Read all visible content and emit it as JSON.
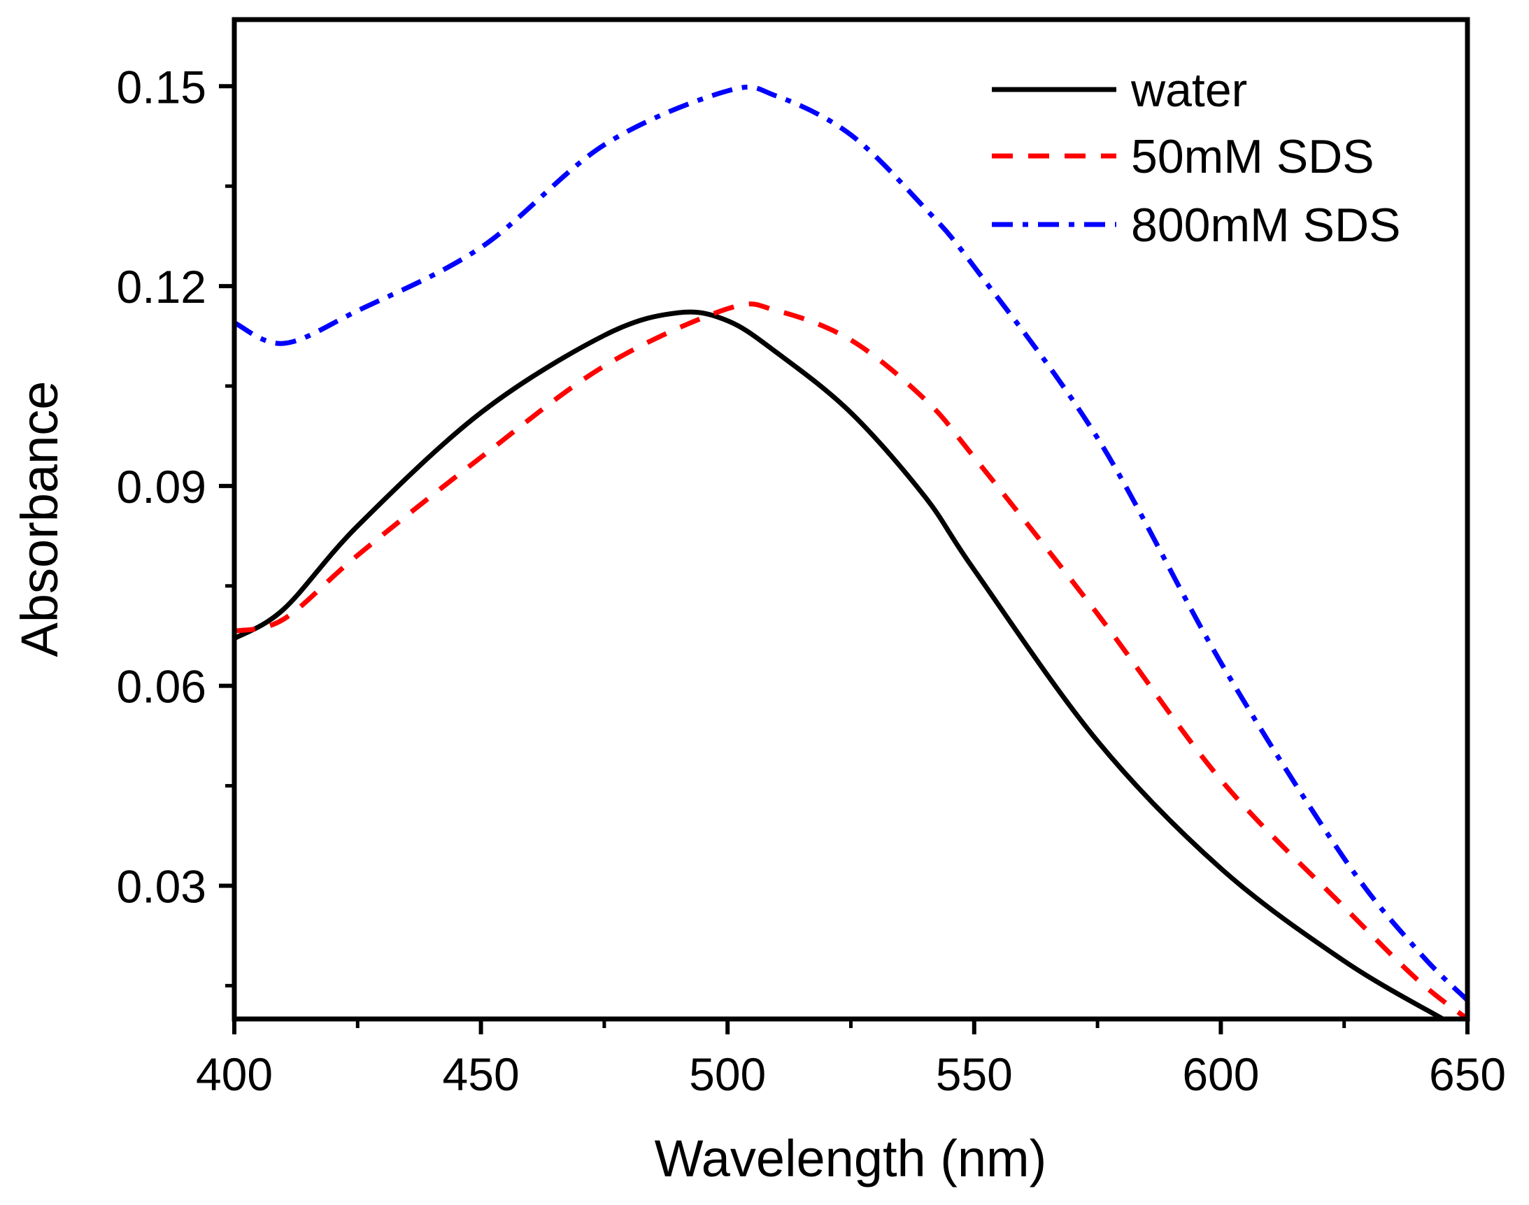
{
  "chart_data": {
    "type": "line",
    "title": "",
    "xlabel": "Wavelength (nm)",
    "ylabel": "Absorbance",
    "xlim": [
      400,
      650
    ],
    "ylim": [
      0.01,
      0.16
    ],
    "xticks": [
      400,
      450,
      500,
      550,
      600,
      650
    ],
    "xtick_labels": [
      "400",
      "450",
      "500",
      "550",
      "600",
      "650"
    ],
    "yticks": [
      0.03,
      0.06,
      0.09,
      0.12,
      0.15
    ],
    "ytick_labels": [
      "0.03",
      "0.06",
      "0.09",
      "0.12",
      "0.15"
    ],
    "grid": false,
    "legend_position": "top-right",
    "series": [
      {
        "name": "water",
        "color": "#000000",
        "style": "solid",
        "x": [
          400,
          410,
          425,
          450,
          475,
          490,
          500,
          510,
          525,
          540,
          550,
          575,
          600,
          625,
          645
        ],
        "y": [
          0.0671,
          0.0715,
          0.084,
          0.101,
          0.1126,
          0.116,
          0.1148,
          0.11,
          0.101,
          0.0884,
          0.0774,
          0.0517,
          0.0326,
          0.0187,
          0.01
        ]
      },
      {
        "name": "50mM SDS",
        "color": "#ff0000",
        "style": "dashed",
        "x": [
          400,
          410,
          425,
          450,
          475,
          500,
          510,
          525,
          540,
          550,
          575,
          600,
          625,
          640,
          650
        ],
        "y": [
          0.0682,
          0.07,
          0.0796,
          0.0943,
          0.108,
          0.1166,
          0.1163,
          0.1119,
          0.103,
          0.0943,
          0.0708,
          0.0459,
          0.0268,
          0.0158,
          0.01
        ]
      },
      {
        "name": "800mM SDS",
        "color": "#0000ff",
        "style": "dash-dot",
        "x": [
          400,
          410,
          425,
          450,
          475,
          500,
          510,
          525,
          540,
          550,
          575,
          600,
          625,
          640,
          650
        ],
        "y": [
          0.1145,
          0.1114,
          0.1163,
          0.1258,
          0.1412,
          0.1493,
          0.1485,
          0.1427,
          0.1317,
          0.1229,
          0.0972,
          0.0635,
          0.0341,
          0.0202,
          0.0128
        ]
      }
    ]
  }
}
